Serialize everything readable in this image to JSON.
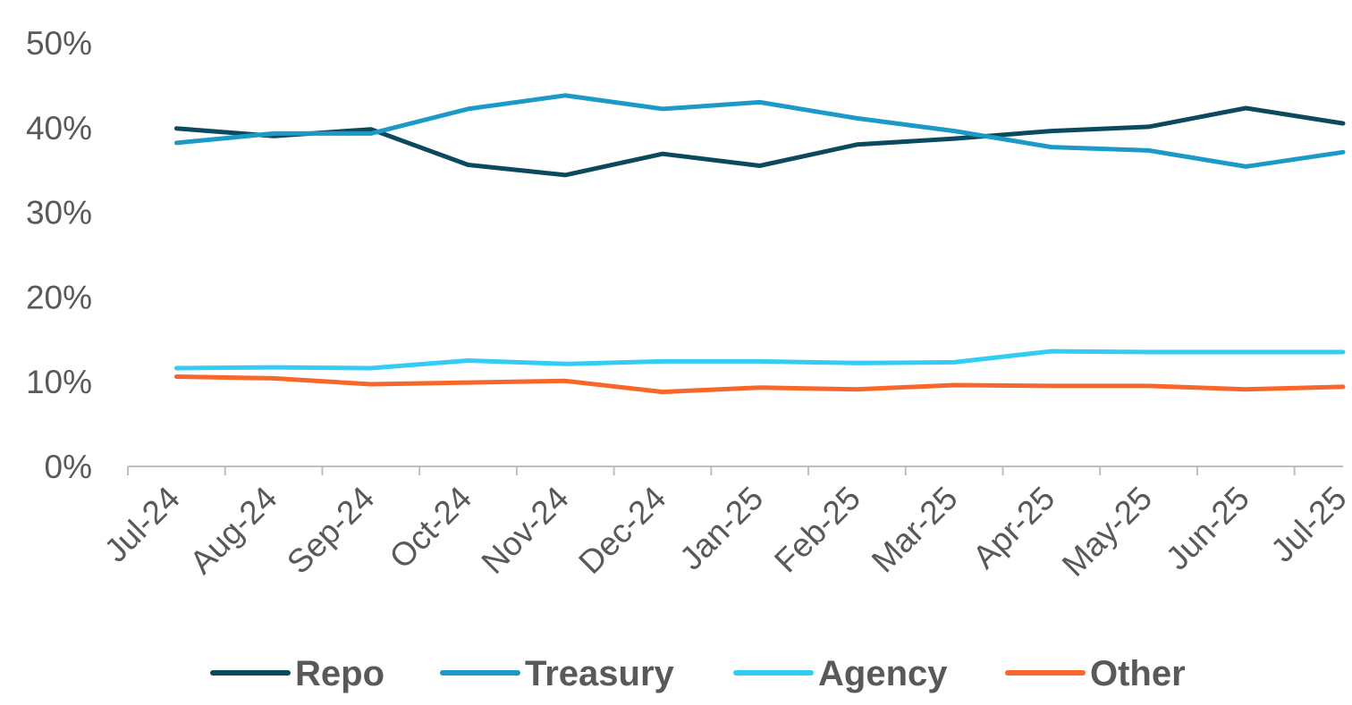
{
  "chart_data": {
    "type": "line",
    "categories": [
      "Jul-24",
      "Aug-24",
      "Sep-24",
      "Oct-24",
      "Nov-24",
      "Dec-24",
      "Jan-25",
      "Feb-25",
      "Mar-25",
      "Apr-25",
      "May-25",
      "Jun-25",
      "Jul-25"
    ],
    "ylim": [
      0,
      50
    ],
    "yticks": [
      0,
      10,
      20,
      30,
      40,
      50
    ],
    "ytick_labels": [
      "0%",
      "10%",
      "20%",
      "30%",
      "40%",
      "50%"
    ],
    "grid": false,
    "legend_position": "bottom",
    "series": [
      {
        "name": "Repo",
        "color": "#0B4A5E",
        "values": [
          39.9,
          39.0,
          39.8,
          35.6,
          34.4,
          36.9,
          35.5,
          38.0,
          38.7,
          39.6,
          40.1,
          42.3,
          40.5
        ]
      },
      {
        "name": "Treasury",
        "color": "#1B9AC8",
        "values": [
          38.2,
          39.3,
          39.3,
          42.2,
          43.8,
          42.2,
          43.0,
          41.1,
          39.6,
          37.7,
          37.3,
          35.4,
          37.1
        ]
      },
      {
        "name": "Agency",
        "color": "#33CCF5",
        "values": [
          11.6,
          11.7,
          11.6,
          12.5,
          12.1,
          12.4,
          12.4,
          12.2,
          12.3,
          13.6,
          13.5,
          13.5,
          13.5
        ]
      },
      {
        "name": "Other",
        "color": "#F8662A",
        "values": [
          10.6,
          10.4,
          9.7,
          9.9,
          10.1,
          8.8,
          9.3,
          9.1,
          9.6,
          9.5,
          9.5,
          9.1,
          9.4
        ]
      }
    ]
  }
}
